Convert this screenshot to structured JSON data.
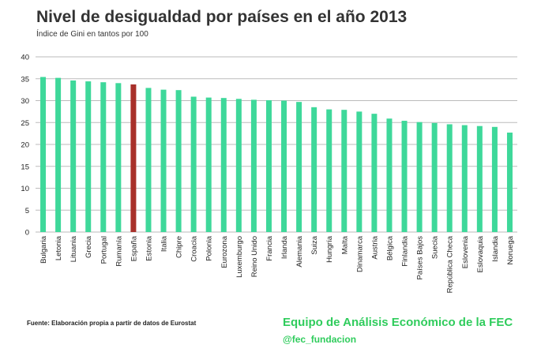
{
  "colors": {
    "bar": "#3ED89A",
    "highlight": "#A8302A",
    "grid": "#BBBBBB",
    "brand": "#2FCC5C"
  },
  "footer": {
    "source": "Fuente: Elaboración propia a partir de datos de Eurostat",
    "brand": "Equipo de Análisis Económico de la FEC",
    "handle": "@fec_fundacion"
  },
  "chart_data": {
    "type": "bar",
    "title": "Nivel de desigualdad por países en el año 2013",
    "subtitle": "Índice de Gini en tantos por 100",
    "xlabel": "",
    "ylabel": "",
    "ylim": [
      0,
      40
    ],
    "yticks": [
      0,
      5,
      10,
      15,
      20,
      25,
      30,
      35,
      40
    ],
    "grid": true,
    "highlight": "España",
    "categories": [
      "Bulgaria",
      "Letonia",
      "Lituania",
      "Grecia",
      "Portugal",
      "Rumanía",
      "España",
      "Estonia",
      "Italia",
      "Chipre",
      "Croacia",
      "Polonia",
      "Eurozona",
      "Luxemburgo",
      "Reino Unido",
      "Francia",
      "Irlanda",
      "Alemania",
      "Suiza",
      "Hungría",
      "Malta",
      "Dinamarca",
      "Austria",
      "Bélgica",
      "Finlandia",
      "Países Bajos",
      "Suecia",
      "República Checa",
      "Eslovenia",
      "Eslovaquia",
      "Islandia",
      "Noruega"
    ],
    "values": [
      35.4,
      35.2,
      34.6,
      34.4,
      34.2,
      34.0,
      33.7,
      32.9,
      32.5,
      32.4,
      30.9,
      30.7,
      30.6,
      30.4,
      30.2,
      30.1,
      30.0,
      29.7,
      28.5,
      28.0,
      27.9,
      27.5,
      27.0,
      25.9,
      25.4,
      25.1,
      24.9,
      24.6,
      24.4,
      24.2,
      24.0,
      22.7
    ]
  }
}
